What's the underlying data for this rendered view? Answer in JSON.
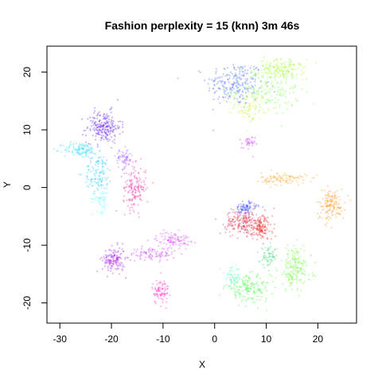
{
  "chart_data": {
    "type": "scatter",
    "title": "Fashion perplexity = 15 (knn) 3m 46s",
    "xlabel": "X",
    "ylabel": "Y",
    "xlim": [
      -32.5,
      27.5
    ],
    "ylim": [
      -23.5,
      24.5
    ],
    "xticks": [
      -30,
      -20,
      -10,
      0,
      10,
      20
    ],
    "yticks": [
      -20,
      -10,
      0,
      10,
      20
    ],
    "grid": false,
    "legend": "none",
    "clusters": [
      {
        "color": "#4466ff",
        "cx": 4,
        "cy": 18,
        "rx": 5,
        "ry": 3.5,
        "n": 220
      },
      {
        "color": "#77ff44",
        "cx": 10,
        "cy": 17,
        "rx": 6,
        "ry": 4,
        "n": 220
      },
      {
        "color": "#aaff33",
        "cx": 13,
        "cy": 20.5,
        "rx": 4,
        "ry": 1.5,
        "n": 140
      },
      {
        "color": "#ddee33",
        "cx": 7,
        "cy": 14,
        "rx": 3,
        "ry": 2,
        "n": 80
      },
      {
        "color": "#cc33ff",
        "cx": 6.5,
        "cy": 7.5,
        "rx": 1.2,
        "ry": 1.3,
        "n": 35
      },
      {
        "color": "#6622ee",
        "cx": -21.5,
        "cy": 10.5,
        "rx": 3,
        "ry": 2.5,
        "n": 220
      },
      {
        "color": "#33ddff",
        "cx": -26,
        "cy": 6.5,
        "rx": 3,
        "ry": 1.2,
        "n": 120
      },
      {
        "color": "#22ccff",
        "cx": -22.5,
        "cy": 2.5,
        "rx": 2.5,
        "ry": 3,
        "n": 120
      },
      {
        "color": "#66ffff",
        "cx": -22,
        "cy": -2,
        "rx": 1.5,
        "ry": 2,
        "n": 60
      },
      {
        "color": "#ee33aa",
        "cx": -15.5,
        "cy": 0,
        "rx": 2,
        "ry": 3.5,
        "n": 160
      },
      {
        "color": "#aa66ff",
        "cx": -17.5,
        "cy": 5,
        "rx": 1.5,
        "ry": 1.5,
        "n": 70
      },
      {
        "color": "#aa22ee",
        "cx": -19.5,
        "cy": -12.5,
        "rx": 2,
        "ry": 2,
        "n": 150
      },
      {
        "color": "#cc33ff",
        "cx": -12,
        "cy": -11.5,
        "rx": 4,
        "ry": 1,
        "n": 90
      },
      {
        "color": "#dd44ff",
        "cx": -8,
        "cy": -9,
        "rx": 3,
        "ry": 1.2,
        "n": 100
      },
      {
        "color": "#ff33cc",
        "cx": -10.5,
        "cy": -18,
        "rx": 1.5,
        "ry": 2,
        "n": 90
      },
      {
        "color": "#ffaa33",
        "cx": 13.5,
        "cy": 1.5,
        "rx": 4,
        "ry": 1,
        "n": 110
      },
      {
        "color": "#ff9922",
        "cx": 22.5,
        "cy": -3,
        "rx": 2.5,
        "ry": 2.5,
        "n": 150
      },
      {
        "color": "#dd3355",
        "cx": 5.5,
        "cy": -6,
        "rx": 3,
        "ry": 2,
        "n": 200
      },
      {
        "color": "#ee2222",
        "cx": 9,
        "cy": -7,
        "rx": 2,
        "ry": 2,
        "n": 130
      },
      {
        "color": "#4455ff",
        "cx": 6,
        "cy": -3.5,
        "rx": 2,
        "ry": 1,
        "n": 90
      },
      {
        "color": "#66ff33",
        "cx": 15.5,
        "cy": -14,
        "rx": 3,
        "ry": 3.5,
        "n": 180
      },
      {
        "color": "#44ff44",
        "cx": 6.5,
        "cy": -17.5,
        "rx": 4,
        "ry": 2,
        "n": 170
      },
      {
        "color": "#66ffcc",
        "cx": 3.5,
        "cy": -15.5,
        "rx": 1.5,
        "ry": 1.5,
        "n": 60
      },
      {
        "color": "#33dd77",
        "cx": 10.5,
        "cy": -12,
        "rx": 1.5,
        "ry": 1.5,
        "n": 60
      }
    ]
  }
}
